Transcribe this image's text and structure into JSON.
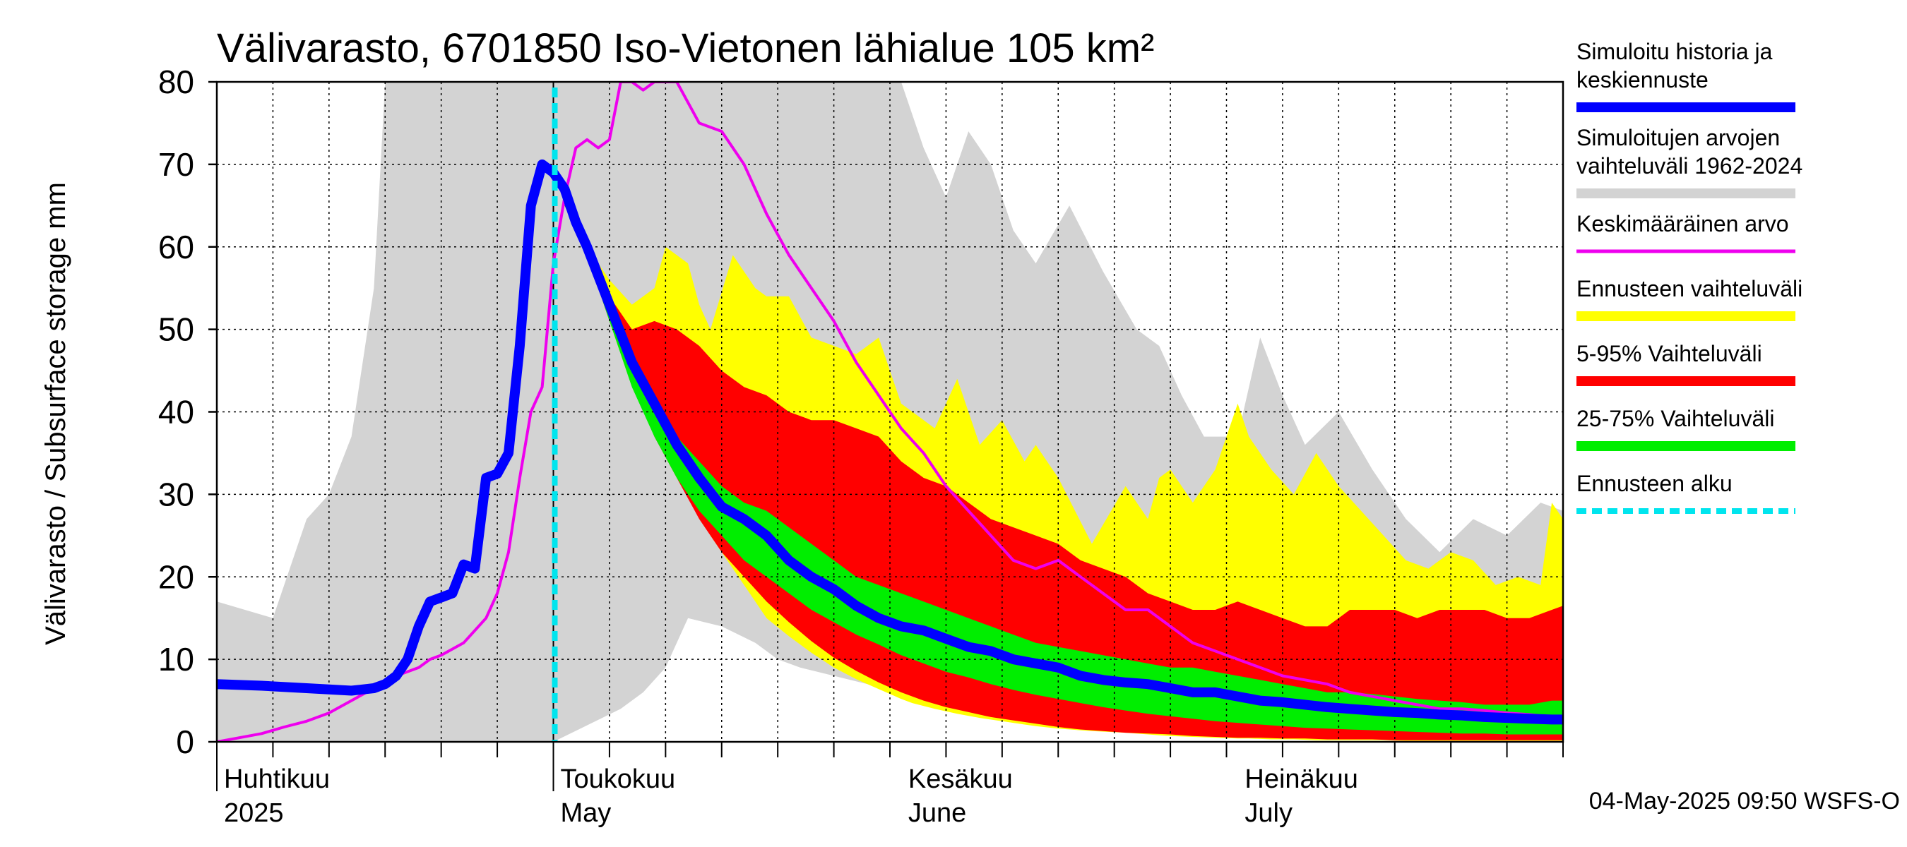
{
  "chart_data": {
    "type": "area",
    "title": "Välivarasto, 6701850 Iso-Vietonen lähialue 105 km²",
    "ylabel": "Välivarasto / Subsurface storage  mm",
    "ylim": [
      0,
      80
    ],
    "yticks": [
      0,
      10,
      20,
      30,
      40,
      50,
      60,
      70,
      80
    ],
    "x_range_days": [
      0,
      120
    ],
    "month_labels": [
      {
        "day": 0,
        "line1": "Huhtikuu",
        "line2": "2025"
      },
      {
        "day": 30,
        "line1": "Toukokuu",
        "line2": "May"
      },
      {
        "day": 61,
        "line1": "Kesäkuu",
        "line2": "June"
      },
      {
        "day": 91,
        "line1": "Heinäkuu",
        "line2": "July"
      }
    ],
    "forecast_start_day": 30,
    "grid": true,
    "legend_position": "right",
    "legend": [
      {
        "lines": [
          "Simuloitu historia ja",
          "keskiennuste"
        ],
        "color": "#0000ff",
        "style": "thick"
      },
      {
        "lines": [
          "Simuloitujen arvojen",
          "vaihteluväli 1962-2024"
        ],
        "color": "#d3d3d3",
        "style": "thick"
      },
      {
        "lines": [
          "Keskimääräinen arvo"
        ],
        "color": "#ee00ee",
        "style": "thin"
      },
      {
        "lines": [
          "Ennusteen vaihteluväli"
        ],
        "color": "#ffff00",
        "style": "thick"
      },
      {
        "lines": [
          "5-95% Vaihteluväli"
        ],
        "color": "#ff0000",
        "style": "thick"
      },
      {
        "lines": [
          "25-75% Vaihteluväli"
        ],
        "color": "#00ee00",
        "style": "thick"
      },
      {
        "lines": [
          "Ennusteen alku"
        ],
        "color": "#00e5ee",
        "style": "dashed"
      }
    ],
    "series": [
      {
        "name": "Simuloitujen arvojen vaihteluväli 1962-2024",
        "kind": "band",
        "color": "#d3d3d3",
        "x": [
          0,
          5,
          8,
          10,
          12,
          14,
          15,
          16,
          18,
          20,
          22,
          25,
          30,
          33,
          36,
          38,
          40,
          42,
          45,
          48,
          50,
          52,
          55,
          58,
          61,
          63,
          65,
          67,
          69,
          71,
          73,
          76,
          79,
          82,
          84,
          86,
          88,
          91,
          93,
          95,
          97,
          100,
          103,
          106,
          109,
          112,
          115,
          118,
          120
        ],
        "upper": [
          17,
          15,
          27,
          30,
          37,
          55,
          80,
          80,
          80,
          80,
          80,
          80,
          80,
          80,
          80,
          80,
          80,
          80,
          80,
          80,
          80,
          80,
          80,
          80,
          80,
          72,
          66,
          74,
          70,
          62,
          58,
          65,
          57,
          50,
          48,
          42,
          37,
          37,
          49,
          42,
          36,
          40,
          33,
          27,
          23,
          27,
          25,
          29,
          28
        ],
        "lower": [
          0,
          0,
          0,
          0,
          0,
          0,
          0,
          0,
          0,
          0,
          0,
          0,
          0,
          2,
          4,
          6,
          9,
          15,
          14,
          12,
          10,
          9,
          8,
          7,
          6,
          5,
          4.5,
          4,
          3.5,
          3,
          2.5,
          2,
          1.8,
          1.5,
          1.2,
          1,
          0.8,
          0.6,
          0.5,
          0.4,
          0.4,
          0.3,
          0.3,
          0.2,
          0.2,
          0.2,
          0.2,
          0.2,
          0.2
        ]
      },
      {
        "name": "Ennusteen vaihteluväli",
        "kind": "band",
        "color": "#ffff00",
        "x": [
          31,
          33,
          35,
          37,
          39,
          40,
          42,
          43,
          44,
          46,
          47,
          48,
          49,
          51,
          53,
          55,
          57,
          59,
          61,
          62,
          64,
          66,
          68,
          70,
          72,
          73,
          75,
          78,
          81,
          83,
          84,
          85,
          87,
          89,
          91,
          92,
          94,
          96,
          98,
          100,
          102,
          104,
          106,
          108,
          110,
          112,
          114,
          116,
          118,
          119,
          120
        ],
        "upper": [
          67,
          60,
          56,
          53,
          55,
          60,
          58,
          53,
          50,
          59,
          57,
          55,
          54,
          54,
          49,
          48,
          47,
          49,
          41,
          40,
          38,
          44,
          36,
          39,
          34,
          36,
          32,
          24,
          31,
          27,
          32,
          33,
          29,
          33,
          41,
          37,
          33,
          30,
          35,
          31,
          28,
          25,
          22,
          21,
          23,
          22,
          19,
          20,
          19,
          29,
          27
        ],
        "lower": [
          66,
          60,
          52,
          45,
          38,
          35,
          31,
          28,
          25,
          21,
          19,
          17,
          15,
          12.8,
          10.8,
          9,
          7.6,
          6.4,
          5.2,
          4.7,
          4,
          3.4,
          2.9,
          2.5,
          2.1,
          1.9,
          1.6,
          1.3,
          1.1,
          0.9,
          0.8,
          0.7,
          0.6,
          0.5,
          0.4,
          0.4,
          0.3,
          0.3,
          0.2,
          0.2,
          0.2,
          0.2,
          0.1,
          0.1,
          0.1,
          0.1,
          0.1,
          0.1,
          0.1,
          0.1,
          0.1
        ]
      },
      {
        "name": "5-95% Vaihteluväli",
        "kind": "band",
        "color": "#ff0000",
        "x": [
          31,
          33,
          35,
          37,
          39,
          41,
          43,
          45,
          47,
          49,
          51,
          53,
          55,
          57,
          59,
          61,
          63,
          65,
          67,
          69,
          71,
          73,
          75,
          77,
          79,
          81,
          83,
          85,
          87,
          89,
          91,
          93,
          95,
          97,
          99,
          101,
          103,
          105,
          107,
          109,
          111,
          113,
          115,
          117,
          119,
          120
        ],
        "upper": [
          66,
          60,
          54,
          50,
          51,
          50,
          48,
          45,
          43,
          42,
          40,
          39,
          39,
          38,
          37,
          34,
          32,
          31,
          29,
          27,
          26,
          25,
          24,
          22,
          21,
          20,
          18,
          17,
          16,
          16,
          17,
          16,
          15,
          14,
          14,
          16,
          16,
          16,
          15,
          16,
          16,
          16,
          15,
          15,
          16,
          16.5
        ],
        "lower": [
          65,
          59,
          51,
          44,
          37,
          32,
          27,
          23,
          20,
          17,
          14.5,
          12.2,
          10.2,
          8.6,
          7.2,
          6,
          5,
          4.2,
          3.6,
          3,
          2.6,
          2.2,
          1.8,
          1.5,
          1.3,
          1.1,
          1.0,
          0.9,
          0.7,
          0.6,
          0.5,
          0.5,
          0.4,
          0.4,
          0.3,
          0.3,
          0.3,
          0.2,
          0.2,
          0.2,
          0.2,
          0.2,
          0.2,
          0.2,
          0.2,
          0.2
        ]
      },
      {
        "name": "25-75% Vaihteluväli",
        "kind": "band",
        "color": "#00ee00",
        "x": [
          31,
          33,
          35,
          37,
          39,
          41,
          43,
          45,
          47,
          49,
          51,
          53,
          55,
          57,
          59,
          61,
          63,
          65,
          67,
          69,
          71,
          73,
          75,
          77,
          79,
          81,
          83,
          85,
          87,
          89,
          91,
          93,
          95,
          97,
          99,
          101,
          103,
          105,
          107,
          109,
          111,
          113,
          115,
          117,
          119,
          120
        ],
        "upper": [
          66,
          60,
          52,
          46,
          42,
          37,
          34,
          31,
          29,
          28,
          26,
          24,
          22,
          20,
          19,
          18,
          17,
          16,
          15,
          14,
          13,
          12,
          11.5,
          11,
          10.5,
          10,
          9.5,
          9,
          9,
          8.5,
          8,
          7.5,
          7,
          6.5,
          6,
          6,
          5.8,
          5.5,
          5.2,
          5,
          4.8,
          4.5,
          4.5,
          4.5,
          5,
          5
        ],
        "lower": [
          65,
          59,
          51,
          43,
          37,
          32,
          28,
          25,
          22,
          20,
          18,
          16,
          14.5,
          13,
          11.8,
          10.5,
          9.5,
          8.5,
          7.8,
          7,
          6.3,
          5.7,
          5.2,
          4.7,
          4.2,
          3.8,
          3.4,
          3.1,
          2.8,
          2.5,
          2.3,
          2.1,
          1.9,
          1.7,
          1.6,
          1.5,
          1.4,
          1.3,
          1.2,
          1.1,
          1.0,
          1.0,
          0.9,
          0.9,
          0.9,
          0.9
        ]
      },
      {
        "name": "Keskimääräinen arvo",
        "kind": "line",
        "color": "#ee00ee",
        "width": 4,
        "x": [
          0,
          2,
          4,
          6,
          8,
          10,
          12,
          14,
          16,
          18,
          19,
          20,
          22,
          24,
          25,
          26,
          27,
          28,
          29,
          30,
          31,
          32,
          33,
          34,
          35,
          36,
          37,
          38,
          39,
          40,
          41,
          43,
          45,
          47,
          49,
          51,
          53,
          55,
          57,
          59,
          61,
          63,
          65,
          67,
          69,
          71,
          73,
          75,
          77,
          79,
          81,
          83,
          85,
          87,
          89,
          91,
          93,
          95,
          97,
          99,
          101,
          103,
          105,
          107,
          109,
          111,
          113,
          115,
          117,
          119,
          120
        ],
        "y": [
          0,
          0.5,
          1,
          1.8,
          2.5,
          3.5,
          5,
          6.5,
          8,
          9,
          10,
          10.5,
          12,
          15,
          18,
          23,
          32,
          40,
          43,
          58,
          66,
          72,
          73,
          72,
          73,
          80,
          80,
          79,
          80,
          80,
          80,
          75,
          74,
          70,
          64,
          59,
          55,
          51,
          46,
          42,
          38,
          35,
          31,
          28,
          25,
          22,
          21,
          22,
          20,
          18,
          16,
          16,
          14,
          12,
          11,
          10,
          9,
          8,
          7.5,
          7,
          6,
          5.5,
          5,
          4.5,
          4,
          4,
          3.8,
          3.5,
          3.3,
          3,
          3
        ]
      },
      {
        "name": "Simuloitu historia ja keskiennuste",
        "kind": "line",
        "color": "#0000ff",
        "width": 14,
        "x": [
          0,
          4,
          8,
          12,
          14,
          15,
          16,
          17,
          18,
          19,
          20,
          21,
          22,
          23,
          24,
          25,
          26,
          27,
          28,
          29,
          30,
          31,
          32,
          33,
          35,
          37,
          39,
          41,
          43,
          45,
          47,
          49,
          51,
          53,
          55,
          57,
          59,
          61,
          63,
          65,
          67,
          69,
          71,
          73,
          75,
          77,
          79,
          81,
          83,
          85,
          87,
          89,
          91,
          93,
          95,
          97,
          99,
          101,
          103,
          105,
          107,
          109,
          111,
          113,
          115,
          117,
          119,
          120
        ],
        "y": [
          7,
          6.8,
          6.5,
          6.2,
          6.5,
          7,
          8,
          10,
          14,
          17,
          17.5,
          18,
          21.5,
          21,
          32,
          32.5,
          35,
          48,
          65,
          70,
          69,
          67,
          63,
          60,
          53,
          46,
          41,
          36,
          32,
          28.5,
          27,
          25,
          22,
          20,
          18.5,
          16.5,
          15,
          14,
          13.5,
          12.5,
          11.5,
          11,
          10,
          9.5,
          9,
          8,
          7.5,
          7.2,
          7,
          6.5,
          6,
          6,
          5.5,
          5,
          4.8,
          4.5,
          4.2,
          4,
          3.8,
          3.6,
          3.5,
          3.3,
          3.2,
          3,
          2.9,
          2.8,
          2.7,
          2.7
        ]
      }
    ],
    "footer": "04-May-2025 09:50 WSFS-O"
  }
}
